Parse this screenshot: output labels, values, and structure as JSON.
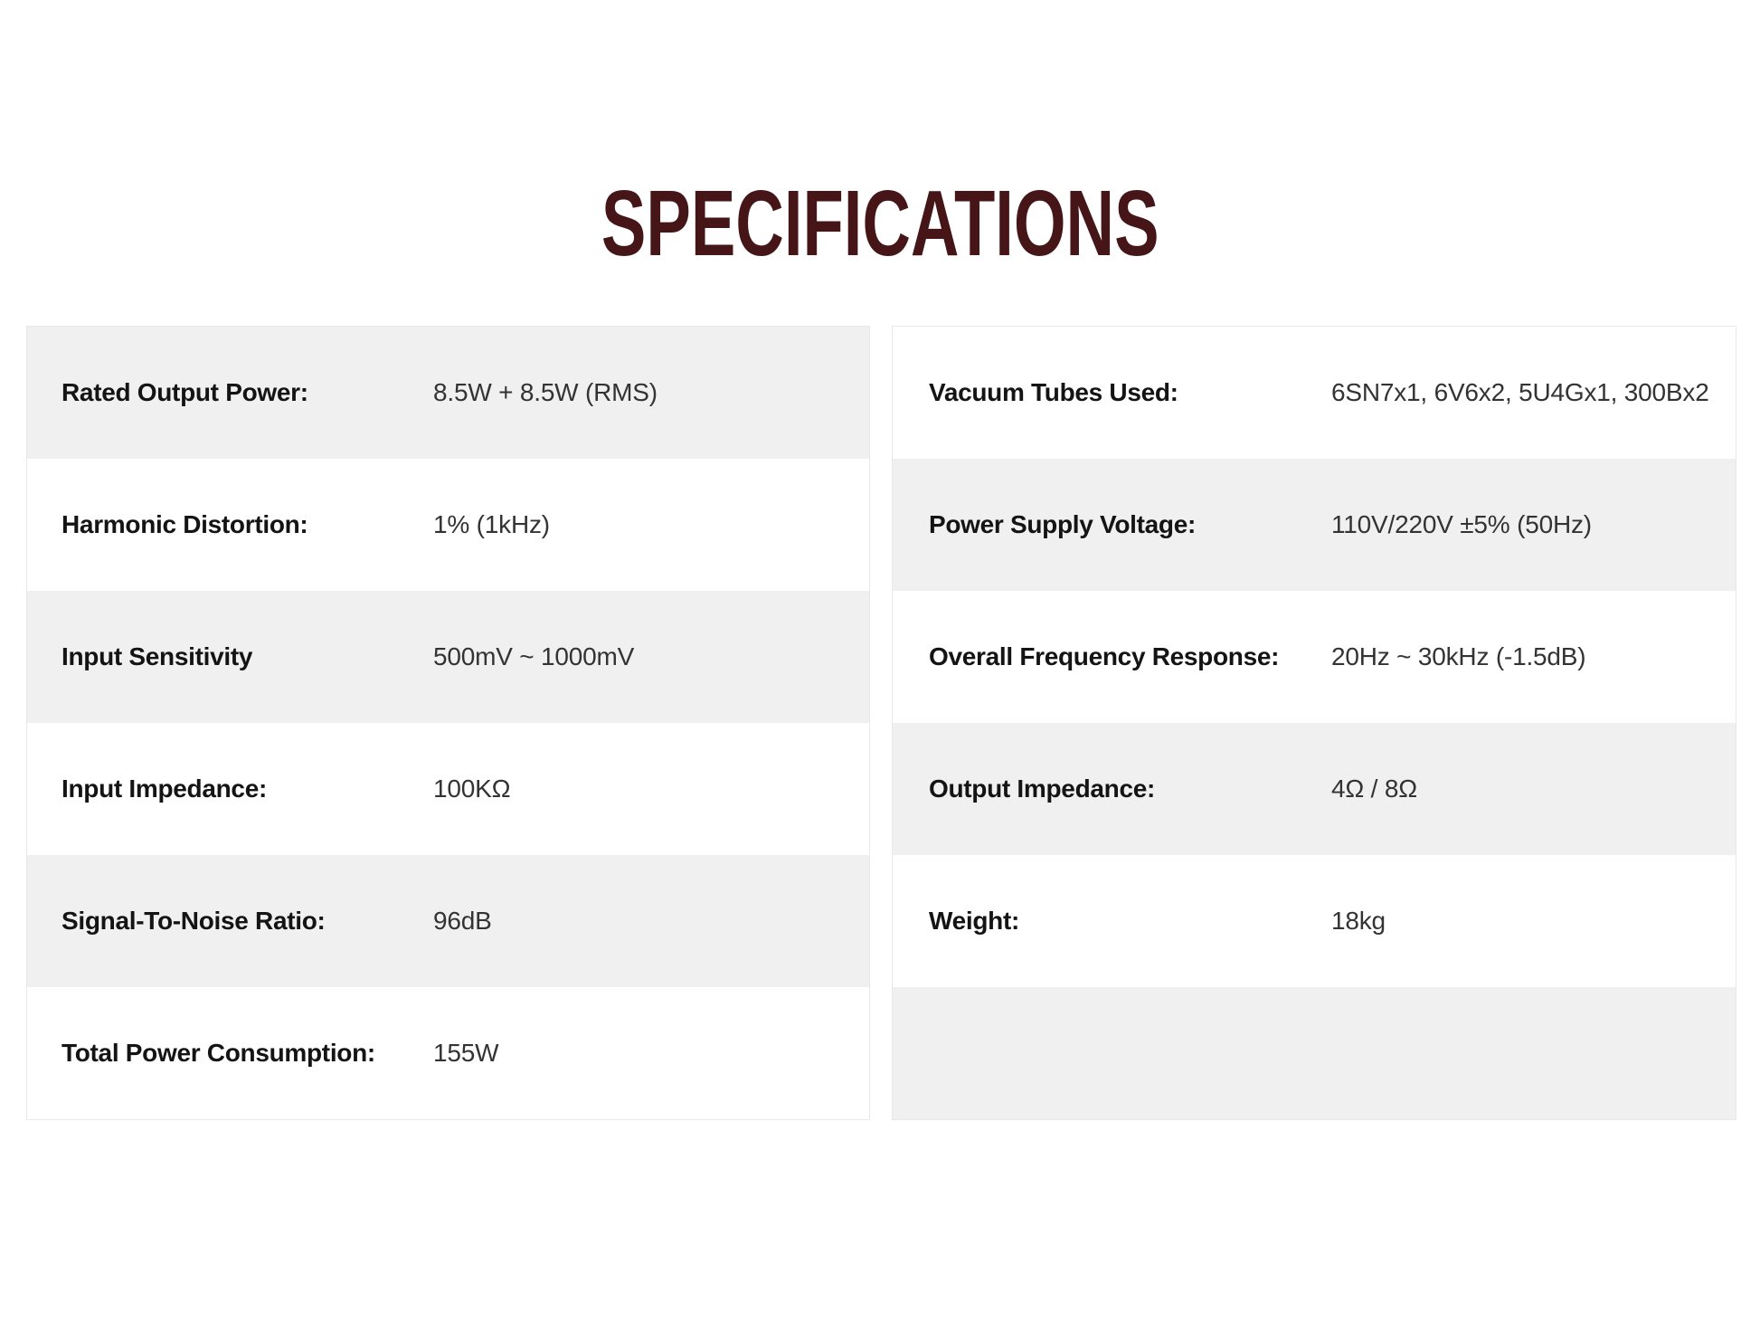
{
  "page": {
    "title": "SPECIFICATIONS"
  },
  "colors": {
    "title_text": "#451518",
    "stripe_row": "#f0f0f0",
    "plain_row": "#ffffff",
    "table_border": "#e8e8e8",
    "label_text": "#141414",
    "value_text": "#333333"
  },
  "tables": {
    "left": {
      "rows": [
        {
          "label": "Rated Output Power:",
          "value": "8.5W + 8.5W (RMS)"
        },
        {
          "label": "Harmonic Distortion:",
          "value": "1% (1kHz)"
        },
        {
          "label": "Input Sensitivity",
          "value": "500mV ~ 1000mV"
        },
        {
          "label": "Input Impedance:",
          "value": "100KΩ"
        },
        {
          "label": "Signal-To-Noise Ratio:",
          "value": "96dB"
        },
        {
          "label": "Total Power Consumption:",
          "value": "155W"
        }
      ]
    },
    "right": {
      "rows": [
        {
          "label": "Vacuum Tubes Used:",
          "value": "6SN7x1, 6V6x2, 5U4Gx1, 300Bx2"
        },
        {
          "label": "Power Supply Voltage:",
          "value": "110V/220V ±5% (50Hz)"
        },
        {
          "label": "Overall Frequency Response:",
          "value": "20Hz ~ 30kHz (-1.5dB)"
        },
        {
          "label": "Output Impedance:",
          "value": "4Ω / 8Ω"
        },
        {
          "label": "Weight:",
          "value": "18kg"
        },
        {
          "label": "",
          "value": ""
        }
      ]
    }
  }
}
